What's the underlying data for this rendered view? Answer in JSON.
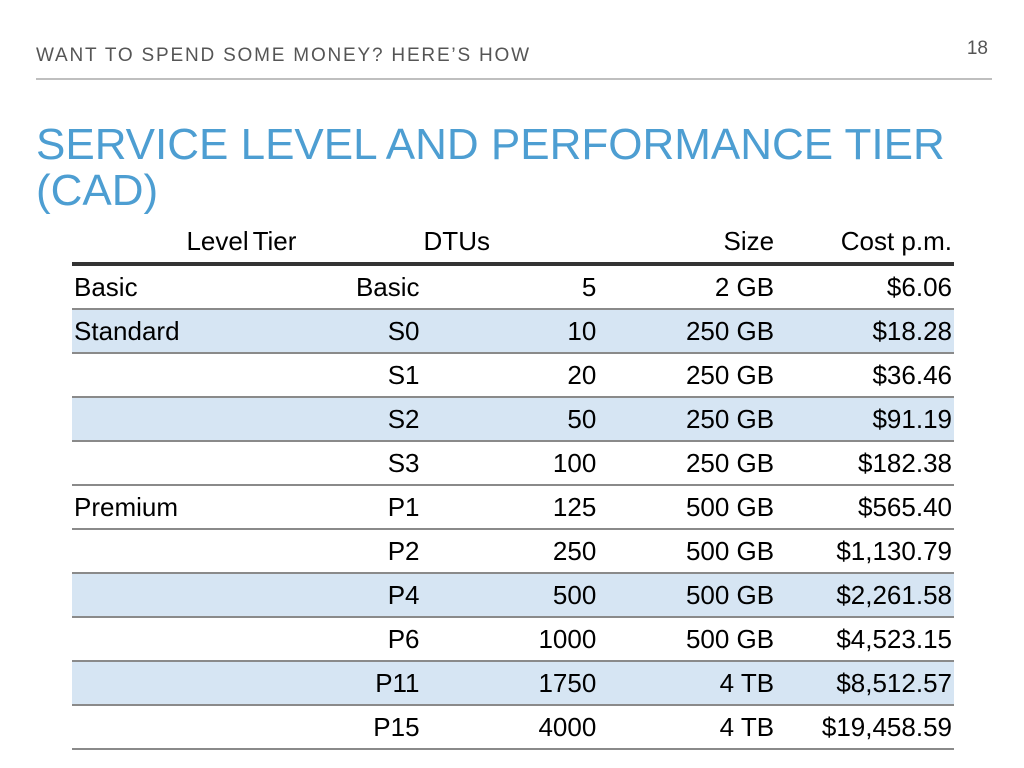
{
  "slide": {
    "page_number": "18",
    "section_header": "WANT TO SPEND SOME MONEY? HERE’S HOW",
    "title": "SERVICE LEVEL AND PERFORMANCE TIER (CAD)"
  },
  "table": {
    "headers": {
      "level": "Level",
      "tier": "Tier",
      "dtus": "DTUs",
      "size": "Size",
      "cost": "Cost p.m."
    },
    "rows": [
      {
        "level": "Basic",
        "tier": "Basic",
        "dtus": "5",
        "size": "2 GB",
        "cost": "$6.06"
      },
      {
        "level": "Standard",
        "tier": "S0",
        "dtus": "10",
        "size": "250 GB",
        "cost": "$18.28"
      },
      {
        "level": "",
        "tier": "S1",
        "dtus": "20",
        "size": "250 GB",
        "cost": "$36.46"
      },
      {
        "level": "",
        "tier": "S2",
        "dtus": "50",
        "size": "250 GB",
        "cost": "$91.19"
      },
      {
        "level": "",
        "tier": "S3",
        "dtus": "100",
        "size": "250 GB",
        "cost": "$182.38"
      },
      {
        "level": "Premium",
        "tier": "P1",
        "dtus": "125",
        "size": "500 GB",
        "cost": "$565.40"
      },
      {
        "level": "",
        "tier": "P2",
        "dtus": "250",
        "size": "500 GB",
        "cost": "$1,130.79"
      },
      {
        "level": "",
        "tier": "P4",
        "dtus": "500",
        "size": "500 GB",
        "cost": "$2,261.58"
      },
      {
        "level": "",
        "tier": "P6",
        "dtus": "1000",
        "size": "500 GB",
        "cost": "$4,523.15"
      },
      {
        "level": "",
        "tier": "P11",
        "dtus": "1750",
        "size": "4 TB",
        "cost": "$8,512.57"
      },
      {
        "level": "",
        "tier": "P15",
        "dtus": "4000",
        "size": "4 TB",
        "cost": "$19,458.59"
      }
    ]
  },
  "colors": {
    "title": "#4d9ed2",
    "row_shading": "#d6e5f3",
    "header_text": "#555555"
  }
}
